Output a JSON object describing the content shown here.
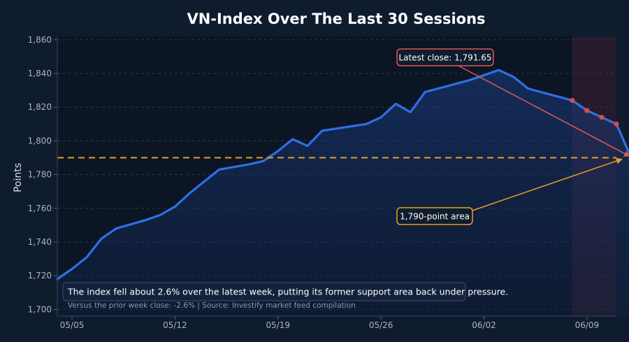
{
  "chart_data": {
    "type": "line",
    "title": "VN-Index Over The Last 30 Sessions",
    "xlabel": "",
    "ylabel": "Points",
    "ylim": [
      1696,
      1862
    ],
    "yticks": [
      1700,
      1720,
      1740,
      1760,
      1780,
      1800,
      1820,
      1840,
      1860
    ],
    "ytick_labels": [
      "1,700",
      "1,720",
      "1,740",
      "1,760",
      "1,780",
      "1,800",
      "1,820",
      "1,840",
      "1,860"
    ],
    "xlim": [
      "2025-05-04",
      "2025-06-11"
    ],
    "xticks": [
      {
        "date": "2025-05-05",
        "label": "05/05"
      },
      {
        "date": "2025-05-12",
        "label": "05/12"
      },
      {
        "date": "2025-05-19",
        "label": "05/19"
      },
      {
        "date": "2025-05-26",
        "label": "05/26"
      },
      {
        "date": "2025-06-02",
        "label": "06/02"
      },
      {
        "date": "2025-06-09",
        "label": "06/09"
      }
    ],
    "grid": true,
    "series": [
      {
        "color": "#2f6fe4",
        "points": [
          {
            "x": "2025-05-04",
            "y": 1718
          },
          {
            "x": "2025-05-05",
            "y": 1724
          },
          {
            "x": "2025-05-06",
            "y": 1731
          },
          {
            "x": "2025-05-07",
            "y": 1742
          },
          {
            "x": "2025-05-08",
            "y": 1748
          },
          {
            "x": "2025-05-10",
            "y": 1753
          },
          {
            "x": "2025-05-11",
            "y": 1756
          },
          {
            "x": "2025-05-12",
            "y": 1761
          },
          {
            "x": "2025-05-13",
            "y": 1769
          },
          {
            "x": "2025-05-15",
            "y": 1783
          },
          {
            "x": "2025-05-17",
            "y": 1786
          },
          {
            "x": "2025-05-18",
            "y": 1788
          },
          {
            "x": "2025-05-19",
            "y": 1794
          },
          {
            "x": "2025-05-20",
            "y": 1801
          },
          {
            "x": "2025-05-21",
            "y": 1797
          },
          {
            "x": "2025-05-22",
            "y": 1806
          },
          {
            "x": "2025-05-25",
            "y": 1810
          },
          {
            "x": "2025-05-26",
            "y": 1814
          },
          {
            "x": "2025-05-27",
            "y": 1822
          },
          {
            "x": "2025-05-28",
            "y": 1817
          },
          {
            "x": "2025-05-29",
            "y": 1829
          },
          {
            "x": "2025-06-01",
            "y": 1836
          },
          {
            "x": "2025-06-03",
            "y": 1842
          },
          {
            "x": "2025-06-04",
            "y": 1838
          },
          {
            "x": "2025-06-05",
            "y": 1831
          },
          {
            "x": "2025-06-08",
            "y": 1824
          },
          {
            "x": "2025-06-09",
            "y": 1818
          },
          {
            "x": "2025-06-10",
            "y": 1814
          },
          {
            "x": "2025-06-11",
            "y": 1810
          },
          {
            "x": "2025-06-12",
            "y": 1790
          },
          {
            "x": "2025-06-12",
            "y": 1789
          }
        ]
      }
    ],
    "highlight_points": [
      {
        "x": "2025-06-08",
        "y": 1824
      },
      {
        "x": "2025-06-09",
        "y": 1818
      },
      {
        "x": "2025-06-10",
        "y": 1814
      },
      {
        "x": "2025-06-11",
        "y": 1810
      },
      {
        "x": "2025-06-12",
        "y": 1789
      }
    ],
    "highlight_range": {
      "x_start": "2025-06-08",
      "x_end": "2025-06-12"
    },
    "reference_line": {
      "y": 1790,
      "color": "#e8a020"
    },
    "annotations": [
      {
        "id": "latest",
        "text": "Latest close: 1,791.65",
        "target": {
          "x": "2025-06-12",
          "y": 1790
        },
        "color": "#e25555"
      },
      {
        "id": "support",
        "text": "1,790-point area",
        "target": {
          "x": "2025-06-11",
          "y": 1790
        },
        "color": "#e8a020"
      }
    ],
    "note": "The index fell about 2.6% over the latest week, putting its former support area back under pressure.",
    "footnote": "Versus the prior week close: -2.6% | Source: Investify market feed compilation",
    "colors": {
      "background": "#0f1c2e",
      "plot_background": "#0b1524",
      "line": "#2f6fe4",
      "highlight_marker": "#e04848",
      "highlight_band": "#2a1c2e"
    }
  }
}
